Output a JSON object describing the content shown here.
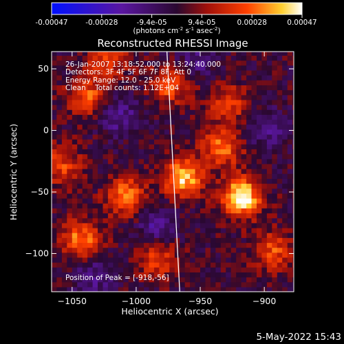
{
  "colorbar": {
    "tick_labels": [
      "-0.00047",
      "-0.00028",
      "-9.4e-05",
      "9.4e-05",
      "0.00028",
      "0.00047"
    ],
    "unit_label_parts": [
      "(photons cm",
      "-2",
      " s",
      "-1",
      " asec",
      "-2",
      ")"
    ]
  },
  "chart_data": {
    "type": "heatmap",
    "title": "Reconstructed RHESSI Image",
    "xlabel": "Heliocentric X (arcsec)",
    "ylabel": "Heliocentric Y (arcsec)",
    "xlim": [
      -1066,
      -877
    ],
    "ylim": [
      -131,
      64
    ],
    "xticks": [
      -1050,
      -1000,
      -950,
      -900
    ],
    "yticks": [
      50,
      0,
      -50,
      -100
    ],
    "colorbar_range": [
      -0.00047,
      0.00047
    ],
    "colormap": "blue-purple-red-yellow-white",
    "annotations": {
      "time": "26-Jan-2007 13:18:52.000 to 13:24:40.000",
      "detectors": "Detectors: 3F 4F 5F 6F 7F 8F, Att 0",
      "energy": "Energy Range: 12.0 - 25.0 keV",
      "clean": "Clean    Total counts: 1.12E+04",
      "peak": "Position of Peak = [-918,-56]"
    },
    "limb_line": {
      "x_top": -976,
      "y_top": 64,
      "x_bottom": -966,
      "y_bottom": -131
    },
    "hot_spots": [
      {
        "x": -920,
        "y": -56,
        "value": 0.00047
      },
      {
        "x": -965,
        "y": -40,
        "value": 0.0004
      },
      {
        "x": -935,
        "y": -15,
        "value": 0.0003
      },
      {
        "x": -1010,
        "y": -55,
        "value": 0.00032
      },
      {
        "x": -1045,
        "y": -90,
        "value": 0.0003
      },
      {
        "x": -975,
        "y": 35,
        "value": 0.00026
      },
      {
        "x": -1040,
        "y": 25,
        "value": 0.00026
      },
      {
        "x": -895,
        "y": -100,
        "value": 0.00024
      },
      {
        "x": -1025,
        "y": 55,
        "value": 0.00022
      },
      {
        "x": -930,
        "y": 20,
        "value": 0.00022
      },
      {
        "x": -985,
        "y": -105,
        "value": 0.00024
      },
      {
        "x": -1060,
        "y": -30,
        "value": 0.00022
      }
    ],
    "cold_spots": [
      {
        "x": -985,
        "y": -80,
        "value": -0.0002
      },
      {
        "x": -1015,
        "y": 10,
        "value": -0.00018
      },
      {
        "x": -900,
        "y": 0,
        "value": -0.00016
      },
      {
        "x": -1035,
        "y": -120,
        "value": -0.00016
      },
      {
        "x": -955,
        "y": 55,
        "value": -0.00014
      }
    ]
  },
  "footer": {
    "date": "5-May-2022 15:43"
  }
}
